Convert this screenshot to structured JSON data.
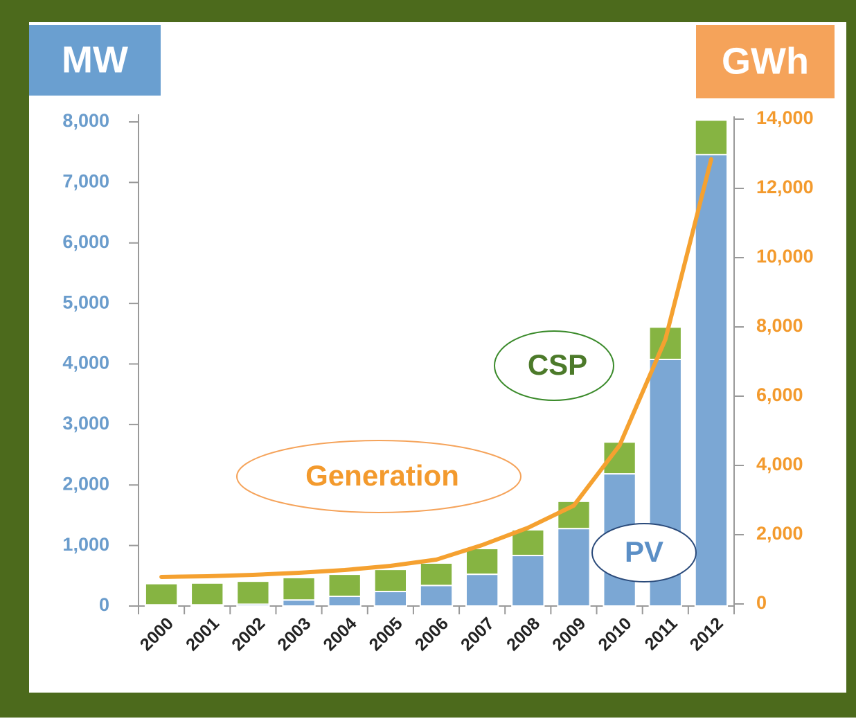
{
  "chart_data": {
    "type": "bar",
    "y_label": "MW",
    "y2_label": "GWh",
    "categories": [
      "2000",
      "2001",
      "2002",
      "2003",
      "2004",
      "2005",
      "2006",
      "2007",
      "2008",
      "2009",
      "2010",
      "2011",
      "2012"
    ],
    "stacked": true,
    "series": [
      {
        "name": "PV",
        "color": "#7ba7d4",
        "axis": "y",
        "values": [
          20,
          20,
          30,
          100,
          160,
          240,
          340,
          525,
          835,
          1280,
          2185,
          4075,
          7460
        ]
      },
      {
        "name": "CSP",
        "color": "#86b442",
        "axis": "y",
        "values": [
          350,
          360,
          380,
          370,
          365,
          365,
          370,
          425,
          425,
          450,
          525,
          535,
          570
        ]
      },
      {
        "name": "Generation",
        "type": "line",
        "color": "#f5a130",
        "axis": "y2",
        "values": [
          780,
          800,
          840,
          900,
          980,
          1100,
          1280,
          1700,
          2200,
          2840,
          4580,
          7640,
          12840
        ]
      }
    ],
    "ylim": [
      0,
      8000
    ],
    "yticks": [
      0,
      {
        "value": 1000,
        "label": "1,000"
      },
      {
        "value": 2000,
        "label": "2,000"
      },
      {
        "value": 3000,
        "label": "3,000"
      },
      {
        "value": 4000,
        "label": "4,000"
      },
      {
        "value": 5000,
        "label": "5,000"
      },
      {
        "value": 6000,
        "label": "6,000"
      },
      {
        "value": 7000,
        "label": "7,000"
      },
      {
        "value": 8000,
        "label": "8,000"
      }
    ],
    "y2lim": [
      0,
      14000
    ],
    "y2ticks": [
      0,
      {
        "value": 2000,
        "label": "2,000"
      },
      {
        "value": 4000,
        "label": "4,000"
      },
      {
        "value": 6000,
        "label": "6,000"
      },
      {
        "value": 8000,
        "label": "8,000"
      },
      {
        "value": 10000,
        "label": "10,000"
      },
      {
        "value": 12000,
        "label": "12,000"
      },
      {
        "value": 14000,
        "label": "14,000"
      }
    ]
  }
}
